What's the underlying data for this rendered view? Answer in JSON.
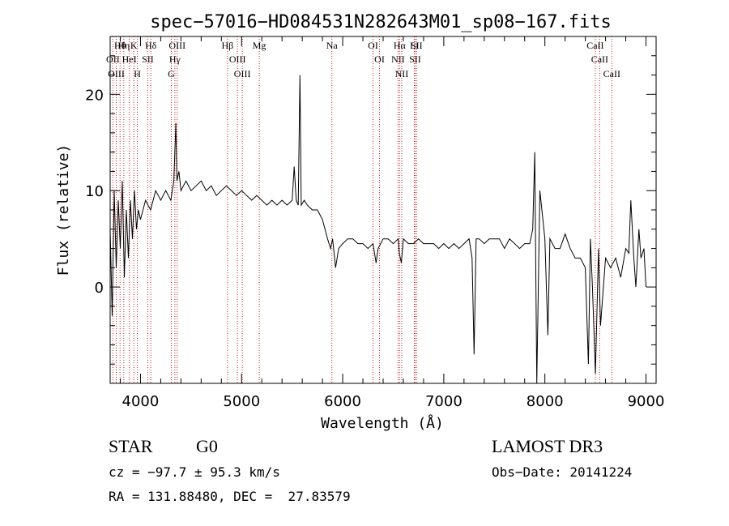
{
  "chart_data": {
    "type": "line",
    "title": "spec−57016−HD084531N282643M01_sp08−167.fits",
    "xlabel": "Wavelength (Å)",
    "ylabel": "Flux (relative)",
    "xlim": [
      3700,
      9100
    ],
    "ylim": [
      -10,
      26
    ],
    "xticks": [
      4000,
      5000,
      6000,
      7000,
      8000,
      9000
    ],
    "yticks": [
      0,
      10,
      20
    ],
    "grid": false,
    "series": [
      {
        "x": [
          3700,
          3720,
          3740,
          3760,
          3780,
          3800,
          3820,
          3840,
          3860,
          3880,
          3900,
          3920,
          3940,
          3960,
          3980,
          4000,
          4050,
          4100,
          4150,
          4200,
          4250,
          4300,
          4330,
          4350,
          4360,
          4380,
          4400,
          4450,
          4500,
          4550,
          4600,
          4650,
          4700,
          4750,
          4800,
          4850,
          4900,
          4950,
          5000,
          5050,
          5100,
          5150,
          5200,
          5250,
          5300,
          5350,
          5400,
          5450,
          5500,
          5520,
          5540,
          5560,
          5577,
          5590,
          5620,
          5650,
          5700,
          5750,
          5800,
          5850,
          5880,
          5900,
          5930,
          5960,
          6000,
          6050,
          6100,
          6150,
          6200,
          6250,
          6300,
          6330,
          6350,
          6400,
          6450,
          6500,
          6550,
          6560,
          6580,
          6600,
          6650,
          6700,
          6750,
          6800,
          6850,
          6900,
          6950,
          7000,
          7050,
          7100,
          7150,
          7200,
          7250,
          7280,
          7300,
          7320,
          7350,
          7400,
          7450,
          7500,
          7550,
          7600,
          7650,
          7700,
          7750,
          7800,
          7850,
          7880,
          7900,
          7920,
          7950,
          8000,
          8030,
          8050,
          8100,
          8150,
          8200,
          8250,
          8300,
          8350,
          8400,
          8430,
          8450,
          8470,
          8500,
          8530,
          8550,
          8600,
          8650,
          8700,
          8750,
          8800,
          8830,
          8850,
          8880,
          8900,
          8930,
          8950,
          8980,
          9000
        ],
        "y": [
          6,
          -3,
          10,
          2,
          9,
          4,
          11,
          1,
          8,
          3,
          9,
          5,
          10,
          6,
          8,
          7,
          9,
          8,
          10,
          9,
          10,
          9,
          11,
          17,
          11,
          12,
          10,
          11,
          10,
          10.5,
          11,
          10,
          10.5,
          9.5,
          10,
          10.5,
          10,
          9.5,
          10,
          9.5,
          9,
          9.5,
          9,
          8.5,
          9,
          8.5,
          9,
          8.5,
          9,
          12.5,
          9,
          8.5,
          22,
          8.5,
          9,
          8.5,
          8,
          8,
          7,
          5,
          4,
          5,
          2,
          4,
          4.5,
          5,
          5,
          4.5,
          4.5,
          4,
          4.5,
          2.5,
          4,
          5,
          5,
          4.5,
          5,
          3.5,
          2.5,
          5,
          4.5,
          4.5,
          5,
          4.5,
          4.5,
          4.5,
          4,
          4.5,
          4,
          4.5,
          4,
          4.5,
          5,
          3,
          -7,
          5,
          5,
          4.5,
          5,
          5,
          5,
          4,
          5,
          4.5,
          4,
          4.5,
          4.5,
          6,
          14,
          -10,
          10,
          5,
          -5,
          5,
          4,
          4,
          5.5,
          4,
          3,
          3,
          2,
          -8,
          5,
          0,
          -9,
          4,
          -4,
          3,
          2,
          3,
          1,
          4,
          3.5,
          9,
          3,
          0,
          6,
          3,
          4,
          0
        ]
      }
    ],
    "spectral_lines": [
      {
        "label": "Hθ",
        "wavelength": 3798
      },
      {
        "label": "OII",
        "wavelength": 3727
      },
      {
        "label": "OIII",
        "wavelength": 3760
      },
      {
        "label": "Hη",
        "wavelength": 3835
      },
      {
        "label": "HeI",
        "wavelength": 3889
      },
      {
        "label": "K",
        "wavelength": 3934
      },
      {
        "label": "H",
        "wavelength": 3969
      },
      {
        "label": "Hδ",
        "wavelength": 4102
      },
      {
        "label": "SII",
        "wavelength": 4072
      },
      {
        "label": "OIII",
        "wavelength": 4363
      },
      {
        "label": "Hγ",
        "wavelength": 4340
      },
      {
        "label": "G",
        "wavelength": 4305
      },
      {
        "label": "Hβ",
        "wavelength": 4861
      },
      {
        "label": "OIII",
        "wavelength": 4959
      },
      {
        "label": "OIII",
        "wavelength": 5007
      },
      {
        "label": "Mg",
        "wavelength": 5175
      },
      {
        "label": "Na",
        "wavelength": 5893
      },
      {
        "label": "OI",
        "wavelength": 6300
      },
      {
        "label": "OI",
        "wavelength": 6364
      },
      {
        "label": "Hα",
        "wavelength": 6563
      },
      {
        "label": "NII",
        "wavelength": 6548
      },
      {
        "label": "NII",
        "wavelength": 6584
      },
      {
        "label": "Li",
        "wavelength": 6708
      },
      {
        "label": "SII",
        "wavelength": 6716
      },
      {
        "label": "SII",
        "wavelength": 6731
      },
      {
        "label": "CaII",
        "wavelength": 8498
      },
      {
        "label": "CaII",
        "wavelength": 8542
      },
      {
        "label": "CaII",
        "wavelength": 8662
      }
    ]
  },
  "info": {
    "object_class": "STAR",
    "subclass": "G0",
    "survey": "LAMOST DR3",
    "cz": "cz = −97.7 ± 95.3 km/s",
    "obs_date": "Obs−Date: 20141224",
    "coords": "RA = 131.88480, DEC =  27.83579"
  },
  "colors": {
    "spectrum": "#000000",
    "line_markers": "#cc2222"
  }
}
